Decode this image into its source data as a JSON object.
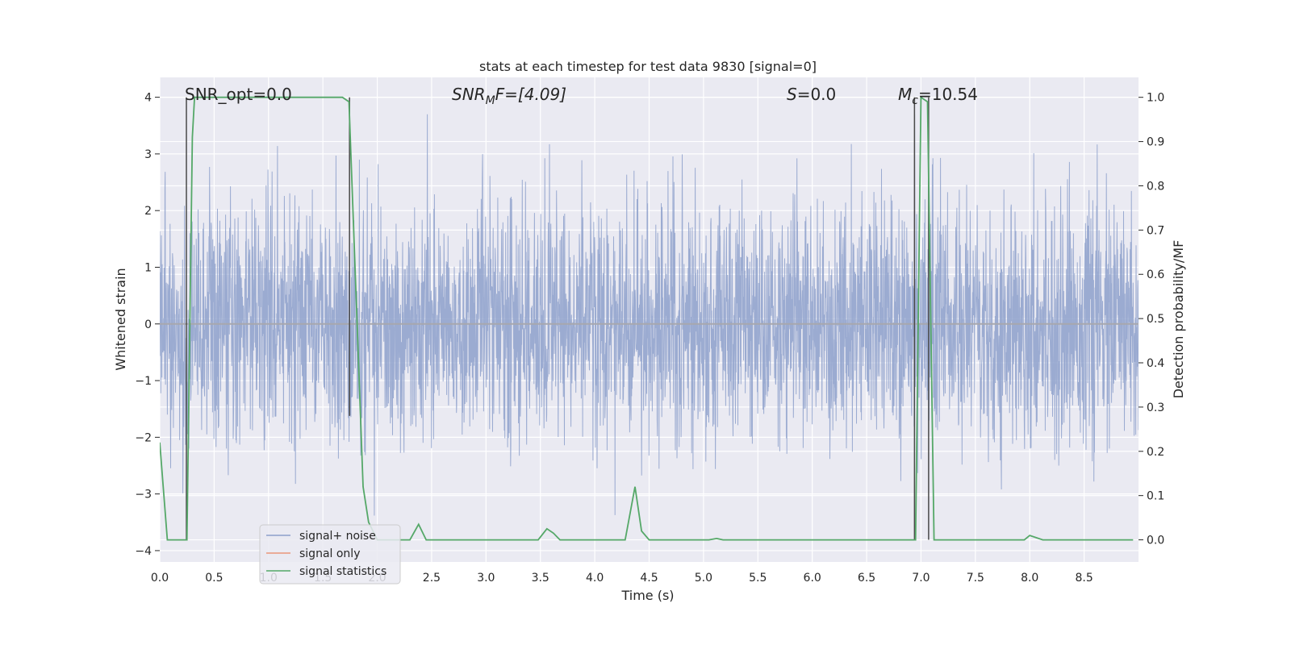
{
  "chart_data": {
    "type": "line",
    "title": "stats at each timestep for test data 9830 [signal=0]",
    "xlabel": "Time (s)",
    "ylabel": "Whitened strain",
    "ylabel_right": "Detection probability/MF",
    "xlim": [
      0.0,
      9.0
    ],
    "ylim": [
      -4.2,
      4.35
    ],
    "ylim_right": [
      -0.05,
      1.045
    ],
    "xticks": [
      "0.0",
      "0.5",
      "1.0",
      "1.5",
      "2.0",
      "2.5",
      "3.0",
      "3.5",
      "4.0",
      "4.5",
      "5.0",
      "5.5",
      "6.0",
      "6.5",
      "7.0",
      "7.5",
      "8.0",
      "8.5"
    ],
    "yticks": [
      "-4",
      "-3",
      "-2",
      "-1",
      "0",
      "1",
      "2",
      "3",
      "4"
    ],
    "yticks_right": [
      "0.0",
      "0.1",
      "0.2",
      "0.3",
      "0.4",
      "0.5",
      "0.6",
      "0.7",
      "0.8",
      "0.9",
      "1.0"
    ],
    "grid": true,
    "annotations": [
      {
        "name": "snr-opt-annotation",
        "text": "SNR_opt=0.0"
      },
      {
        "name": "snr-mf-annotation",
        "main": "SNR",
        "sub": "M",
        "rest": "F=[4.09]"
      },
      {
        "name": "s-annotation",
        "main": "S",
        "rest": "=0.0"
      },
      {
        "name": "mc-annotation",
        "main": "M",
        "sub": "c",
        "rest": "=10.54"
      }
    ],
    "legend": {
      "position": "lower-left",
      "entries": [
        {
          "label": "signal+ noise",
          "color": "#8da0cb"
        },
        {
          "label": "signal only",
          "color": "#e9967a"
        },
        {
          "label": "signal statistics",
          "color": "#55a868"
        }
      ]
    },
    "series": [
      {
        "name": "signal+ noise",
        "axis": "left",
        "description": "whitened strain noise, amplitude roughly within [-3.9, 3.7]",
        "noise_std": 1.0,
        "peak_range": [
          -3.9,
          3.7
        ]
      },
      {
        "name": "signal only",
        "axis": "left",
        "x": [
          0.0,
          9.0
        ],
        "y": [
          0.0,
          0.0
        ]
      },
      {
        "name": "signal statistics",
        "axis": "right",
        "x": [
          0.0,
          0.07,
          0.25,
          0.3,
          0.32,
          1.68,
          1.74,
          1.87,
          1.92,
          2.0,
          2.1,
          2.3,
          2.38,
          2.45,
          2.5,
          3.48,
          3.56,
          3.62,
          3.68,
          4.28,
          4.37,
          4.43,
          4.5,
          5.05,
          5.12,
          5.18,
          6.95,
          7.0,
          7.06,
          7.12,
          7.17,
          7.95,
          8.0,
          8.12,
          8.8,
          8.95
        ],
        "y": [
          0.22,
          0.0,
          0.0,
          0.91,
          1.0,
          1.0,
          0.99,
          0.12,
          0.04,
          0.0,
          0.0,
          0.0,
          0.035,
          0.0,
          0.0,
          0.0,
          0.025,
          0.015,
          0.0,
          0.0,
          0.12,
          0.02,
          0.0,
          0.0,
          0.003,
          0.0,
          0.0,
          1.0,
          0.99,
          0.0,
          0.0,
          0.0,
          0.01,
          0.0,
          0.0,
          0.0
        ]
      }
    ],
    "vlines": [
      {
        "x": 0.245,
        "y0": 0.0,
        "y1": 1.0
      },
      {
        "x": 1.745,
        "y0": 0.28,
        "y1": 1.0
      },
      {
        "x": 6.94,
        "y0": 0.0,
        "y1": 1.0
      },
      {
        "x": 7.07,
        "y0": 0.0,
        "y1": 1.0
      }
    ]
  }
}
